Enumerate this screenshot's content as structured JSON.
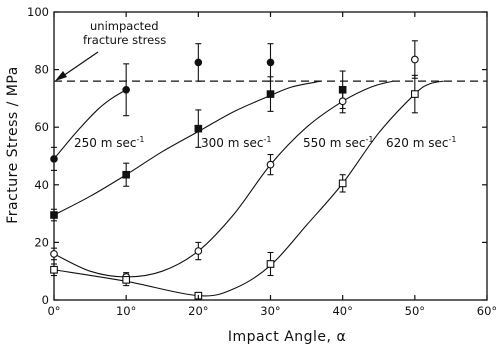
{
  "chart_data": {
    "type": "scatter",
    "xlabel": "Impact Angle, α",
    "ylabel": "Fracture Stress / MPa",
    "xlim": [
      0,
      60
    ],
    "ylim": [
      0,
      100
    ],
    "x_ticks": [
      0,
      10,
      20,
      30,
      40,
      50,
      60
    ],
    "x_tick_labels": [
      "0°",
      "10°",
      "20°",
      "30°",
      "40°",
      "50°",
      "60°"
    ],
    "y_ticks": [
      0,
      20,
      40,
      60,
      80,
      100
    ],
    "y_tick_labels": [
      "0",
      "20",
      "40",
      "60",
      "80",
      "100"
    ],
    "reference_line": {
      "y": 76,
      "label_lines": [
        "unimpacted",
        "fracture stress"
      ]
    },
    "series": [
      {
        "name": "250 m sec⁻¹",
        "marker": "filled-circle",
        "points": [
          {
            "x": 0,
            "y": 49,
            "err": 4
          },
          {
            "x": 10,
            "y": 73,
            "err": 9
          },
          {
            "x": 20,
            "y": 82.5,
            "err": 6.5
          },
          {
            "x": 30,
            "y": 82.5,
            "err": 6.5
          }
        ],
        "curve": [
          [
            0,
            49
          ],
          [
            3,
            58
          ],
          [
            6,
            66
          ],
          [
            8,
            70
          ],
          [
            10,
            73
          ]
        ]
      },
      {
        "name": "300 m sec⁻¹",
        "marker": "filled-square",
        "points": [
          {
            "x": 0,
            "y": 29.5,
            "err": 2
          },
          {
            "x": 10,
            "y": 43.5,
            "err": 4
          },
          {
            "x": 20,
            "y": 59.5,
            "err": 6.5
          },
          {
            "x": 30,
            "y": 71.5,
            "err": 6
          },
          {
            "x": 40,
            "y": 73,
            "err": 6.5
          }
        ],
        "curve": [
          [
            0,
            29.5
          ],
          [
            5,
            36
          ],
          [
            10,
            43.5
          ],
          [
            15,
            51.5
          ],
          [
            20,
            58.5
          ],
          [
            25,
            65.5
          ],
          [
            30,
            71
          ],
          [
            33,
            74
          ],
          [
            37,
            76
          ]
        ]
      },
      {
        "name": "550 m sec⁻¹",
        "marker": "open-circle",
        "points": [
          {
            "x": 0,
            "y": 16,
            "err": 2
          },
          {
            "x": 10,
            "y": 8,
            "err": 1.5
          },
          {
            "x": 20,
            "y": 17,
            "err": 3
          },
          {
            "x": 30,
            "y": 47,
            "err": 3.5
          },
          {
            "x": 40,
            "y": 69,
            "err": 4
          },
          {
            "x": 50,
            "y": 83.5,
            "err": 6.5
          }
        ],
        "curve": [
          [
            0,
            16
          ],
          [
            5,
            10
          ],
          [
            10,
            8
          ],
          [
            15,
            10
          ],
          [
            20,
            17
          ],
          [
            25,
            30
          ],
          [
            30,
            47
          ],
          [
            35,
            60
          ],
          [
            40,
            69
          ],
          [
            44,
            74
          ],
          [
            47,
            76
          ]
        ]
      },
      {
        "name": "620 m sec⁻¹",
        "marker": "open-square",
        "points": [
          {
            "x": 0,
            "y": 10.5,
            "err": 2
          },
          {
            "x": 10,
            "y": 7,
            "err": 2
          },
          {
            "x": 20,
            "y": 1.5,
            "err": 0
          },
          {
            "x": 30,
            "y": 12.5,
            "err": 4
          },
          {
            "x": 40,
            "y": 40.5,
            "err": 3
          },
          {
            "x": 50,
            "y": 71.5,
            "err": 6.5
          }
        ],
        "curve": [
          [
            0,
            10.5
          ],
          [
            10,
            6.5
          ],
          [
            20,
            1.5
          ],
          [
            25,
            4
          ],
          [
            30,
            12
          ],
          [
            35,
            26
          ],
          [
            40,
            40.5
          ],
          [
            45,
            58
          ],
          [
            50,
            71.5
          ],
          [
            52,
            75
          ],
          [
            54,
            76
          ]
        ]
      }
    ],
    "annotations": [
      "unimpacted",
      "fracture stress",
      "250 m sec",
      "300 m sec",
      "550 m sec",
      "620 m sec",
      "-1"
    ]
  }
}
